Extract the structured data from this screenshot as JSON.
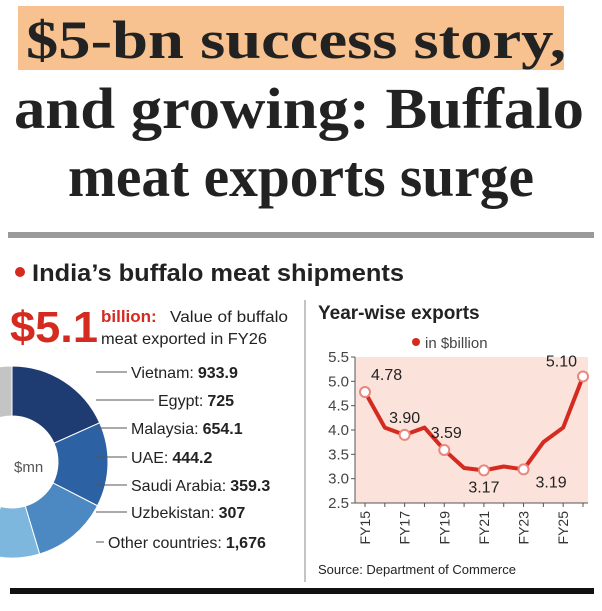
{
  "header": {
    "highlight": "$5-bn success story,",
    "lines": [
      "and growing: Buffalo",
      "meat exports surge"
    ]
  },
  "section_title": "India’s buffalo meat shipments",
  "stat": {
    "value": "$5.1",
    "unit": "billion:",
    "text": [
      "Value of buffalo",
      "meat exported in FY26"
    ]
  },
  "source": "Source: Department of Commerce",
  "chart_data": [
    {
      "type": "pie",
      "center_label": "$mn",
      "categories": [
        "Vietnam:",
        "Egypt:",
        "Malaysia:",
        "UAE:",
        "Saudi Arabia:",
        "Uzbekistan:",
        "Other countries:"
      ],
      "values": [
        933.9,
        725,
        654.1,
        444.2,
        359.3,
        307,
        1676
      ],
      "value_labels": [
        "933.9",
        "725",
        "654.1",
        "444.2",
        "359.3",
        "307",
        "1,676"
      ],
      "colors": [
        "#1f3c72",
        "#2c62a3",
        "#4c89c3",
        "#7db7de",
        "#acd7f1",
        "#7d9cb3",
        "#c4c4c4"
      ]
    },
    {
      "type": "line",
      "title": "Year-wise exports",
      "categories": [
        "FY15",
        null,
        "FY17",
        null,
        "FY19",
        null,
        "FY21",
        null,
        "FY23",
        null,
        "FY25",
        null
      ],
      "series": [
        {
          "name": "in $billion",
          "color": "#d42a20",
          "values": [
            4.78,
            4.05,
            3.9,
            4.05,
            3.59,
            3.22,
            3.17,
            3.25,
            3.19,
            3.75,
            4.05,
            5.1
          ],
          "value_labels": [
            "4.78",
            null,
            "3.90",
            null,
            "3.59",
            null,
            "3.17",
            null,
            "3.19",
            null,
            null,
            "5.10"
          ]
        }
      ],
      "ylim": [
        2.5,
        5.5
      ],
      "yticks": [
        2.5,
        {
          "value": 3,
          "label": "3.0"
        },
        3.5,
        {
          "value": 4,
          "label": "4.0"
        },
        4.5,
        {
          "value": 5,
          "label": "5.0"
        },
        5.5
      ],
      "plot_background": "#fbe2da"
    }
  ]
}
